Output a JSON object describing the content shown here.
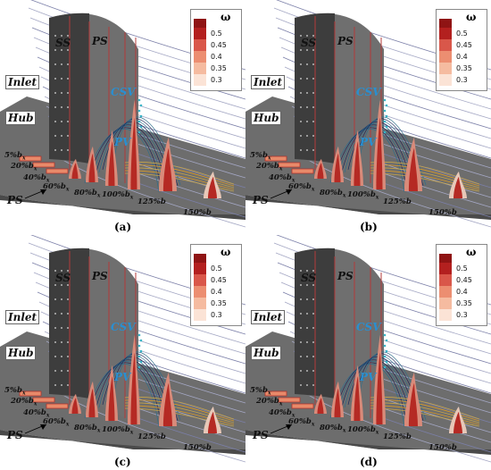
{
  "legend": {
    "symbol": "ω",
    "ticks": [
      "0.5",
      "0.45",
      "0.4",
      "0.35",
      "0.3"
    ],
    "colors": [
      "#b3201f",
      "#d9574a",
      "#ec8e71",
      "#f5bba0",
      "#fbe3d6"
    ]
  },
  "labels": {
    "ss": "SS",
    "ps": "PS",
    "inlet": "Inlet",
    "hub": "Hub",
    "csv": "CSV",
    "pv": "PV",
    "ps_arrow": "PS",
    "stations": [
      "5%b",
      "20%b",
      "40%b",
      "60%b",
      "80%b",
      "100%b",
      "125%b",
      "150%b"
    ],
    "subscript": "x"
  },
  "panels": [
    {
      "id": "a",
      "caption": "(a)"
    },
    {
      "id": "b",
      "caption": "(b)"
    },
    {
      "id": "c",
      "caption": "(c)"
    },
    {
      "id": "d",
      "caption": "(d)"
    }
  ]
}
